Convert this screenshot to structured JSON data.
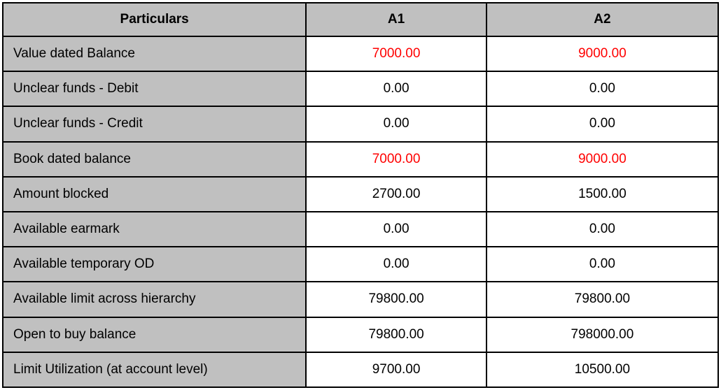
{
  "colors": {
    "header_bg": "#c0c0c0",
    "highlight_text": "#ff0000",
    "border": "#000000"
  },
  "table": {
    "columns": [
      "Particulars",
      "A1",
      "A2"
    ],
    "rows": [
      {
        "label": "Value dated Balance",
        "a1": "7000.00",
        "a2": "9000.00",
        "highlight": true
      },
      {
        "label": "Unclear funds - Debit",
        "a1": "0.00",
        "a2": "0.00",
        "highlight": false
      },
      {
        "label": "Unclear funds - Credit",
        "a1": "0.00",
        "a2": "0.00",
        "highlight": false
      },
      {
        "label": "Book dated balance",
        "a1": "7000.00",
        "a2": "9000.00",
        "highlight": true
      },
      {
        "label": "Amount blocked",
        "a1": "2700.00",
        "a2": "1500.00",
        "highlight": false
      },
      {
        "label": "Available earmark",
        "a1": "0.00",
        "a2": "0.00",
        "highlight": false
      },
      {
        "label": "Available temporary OD",
        "a1": "0.00",
        "a2": "0.00",
        "highlight": false
      },
      {
        "label": "Available limit across hierarchy",
        "a1": "79800.00",
        "a2": "79800.00",
        "highlight": false
      },
      {
        "label": "Open to buy balance",
        "a1": "79800.00",
        "a2": "798000.00",
        "highlight": false
      },
      {
        "label": "Limit Utilization (at account level)",
        "a1": "9700.00",
        "a2": "10500.00",
        "highlight": false
      }
    ]
  }
}
